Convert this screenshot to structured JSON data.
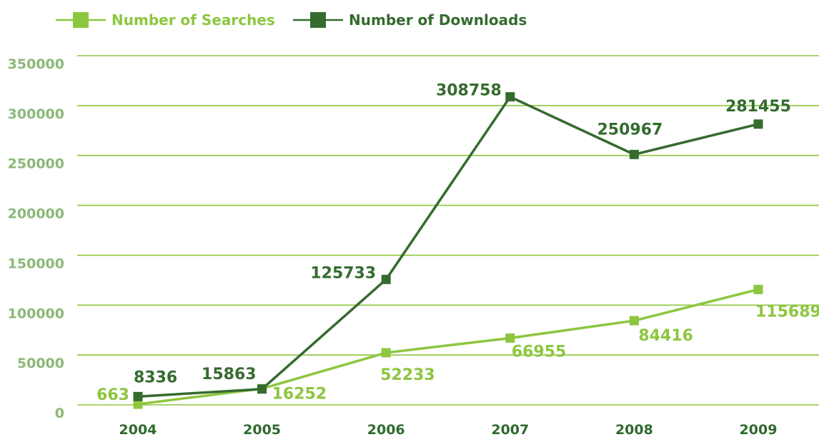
{
  "chart_data": {
    "type": "line",
    "categories": [
      "2004",
      "2005",
      "2006",
      "2007",
      "2008",
      "2009"
    ],
    "series": [
      {
        "name": "Number of Searches",
        "values": [
          663,
          16252,
          52233,
          66955,
          84416,
          115689
        ],
        "labels": [
          "663",
          "16252",
          "52233",
          "66955",
          "84416",
          "115689"
        ],
        "color": "#8dc63f"
      },
      {
        "name": "Number of Downloads",
        "values": [
          8336,
          15863,
          125733,
          308758,
          250967,
          281455
        ],
        "labels": [
          "8336",
          "15863",
          "125733",
          "308758",
          "250967",
          "281455"
        ],
        "color": "#356b2f"
      }
    ],
    "yticks": [
      "0",
      "50000",
      "100000",
      "150000",
      "200000",
      "250000",
      "300000",
      "350000"
    ],
    "ylim": [
      0,
      350000
    ],
    "grid": true,
    "legend_position": "top-left",
    "colors": {
      "gridline": "#8dc63f",
      "ytick": "#8bb878",
      "xtick": "#2f6a2e"
    }
  }
}
